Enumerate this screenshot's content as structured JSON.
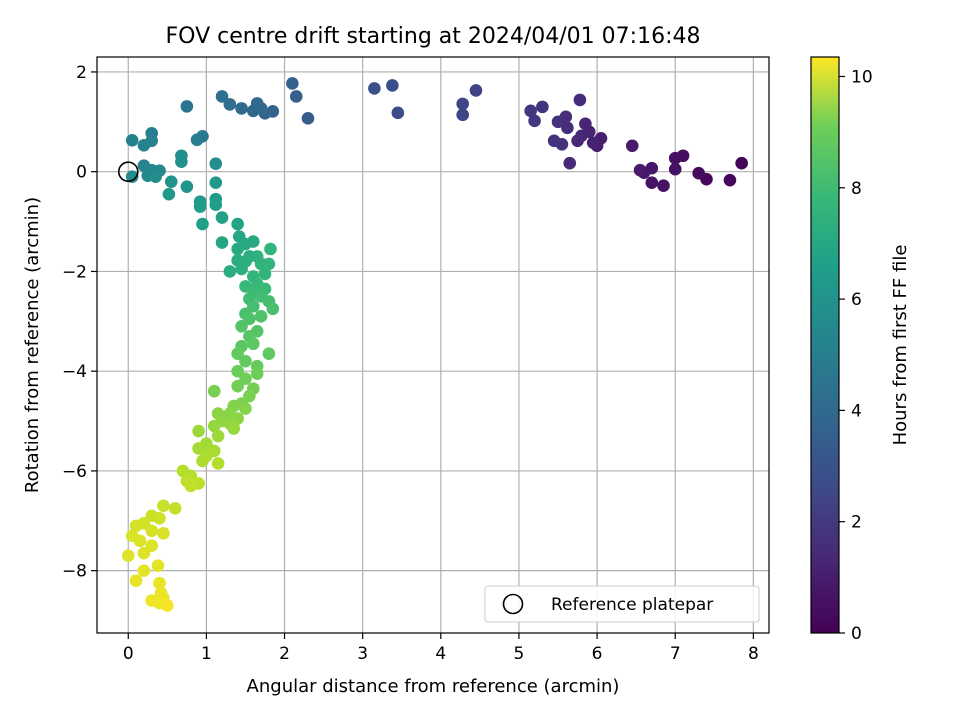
{
  "chart_data": {
    "type": "scatter",
    "title": "FOV centre drift starting at 2024/04/01 07:16:48",
    "xlabel": "Angular distance from reference (arcmin)",
    "ylabel": "Rotation from reference (arcmin)",
    "xlim": [
      -0.4,
      8.2
    ],
    "ylim": [
      -9.25,
      2.3
    ],
    "xticks": [
      0,
      1,
      2,
      3,
      4,
      5,
      6,
      7,
      8
    ],
    "yticks": [
      -8,
      -6,
      -4,
      -2,
      0,
      2
    ],
    "grid": true,
    "legend": {
      "placement": "lower-right",
      "entries": [
        "Reference platepar"
      ]
    },
    "reference_point": {
      "x": 0,
      "y": 0
    },
    "colorbar": {
      "label": "Hours from first FF file",
      "colormap": "viridis",
      "range": [
        0,
        10.35
      ],
      "ticks": [
        0,
        2,
        4,
        6,
        8,
        10
      ]
    },
    "points": [
      {
        "x": 7.85,
        "y": 0.17,
        "c": 0.1
      },
      {
        "x": 7.7,
        "y": -0.17,
        "c": 0.2
      },
      {
        "x": 7.4,
        "y": -0.15,
        "c": 0.25
      },
      {
        "x": 7.3,
        "y": -0.03,
        "c": 0.3
      },
      {
        "x": 7.1,
        "y": 0.32,
        "c": 0.4
      },
      {
        "x": 7.0,
        "y": 0.27,
        "c": 0.45
      },
      {
        "x": 7.0,
        "y": 0.05,
        "c": 0.5
      },
      {
        "x": 6.85,
        "y": -0.28,
        "c": 0.55
      },
      {
        "x": 6.7,
        "y": -0.22,
        "c": 0.6
      },
      {
        "x": 6.7,
        "y": 0.07,
        "c": 0.65
      },
      {
        "x": 6.6,
        "y": -0.02,
        "c": 0.7
      },
      {
        "x": 6.55,
        "y": 0.03,
        "c": 0.75
      },
      {
        "x": 6.45,
        "y": 0.52,
        "c": 0.8
      },
      {
        "x": 6.05,
        "y": 0.67,
        "c": 0.9
      },
      {
        "x": 6.0,
        "y": 0.52,
        "c": 0.95
      },
      {
        "x": 5.95,
        "y": 0.58,
        "c": 1.0
      },
      {
        "x": 5.9,
        "y": 0.8,
        "c": 1.05
      },
      {
        "x": 5.85,
        "y": 0.96,
        "c": 1.1
      },
      {
        "x": 5.8,
        "y": 0.72,
        "c": 1.15
      },
      {
        "x": 5.75,
        "y": 0.62,
        "c": 1.2
      },
      {
        "x": 5.78,
        "y": 1.44,
        "c": 1.25
      },
      {
        "x": 5.65,
        "y": 0.17,
        "c": 1.3
      },
      {
        "x": 5.62,
        "y": 0.88,
        "c": 1.35
      },
      {
        "x": 5.6,
        "y": 1.1,
        "c": 1.4
      },
      {
        "x": 5.55,
        "y": 0.55,
        "c": 1.45
      },
      {
        "x": 5.5,
        "y": 1.0,
        "c": 1.5
      },
      {
        "x": 5.45,
        "y": 0.62,
        "c": 1.55
      },
      {
        "x": 5.3,
        "y": 1.3,
        "c": 1.6
      },
      {
        "x": 5.2,
        "y": 1.02,
        "c": 1.65
      },
      {
        "x": 5.15,
        "y": 1.22,
        "c": 1.7
      },
      {
        "x": 4.45,
        "y": 1.63,
        "c": 2.05
      },
      {
        "x": 4.28,
        "y": 1.36,
        "c": 2.15
      },
      {
        "x": 4.28,
        "y": 1.14,
        "c": 2.2
      },
      {
        "x": 3.45,
        "y": 1.18,
        "c": 2.4
      },
      {
        "x": 3.38,
        "y": 1.73,
        "c": 2.5
      },
      {
        "x": 3.15,
        "y": 1.67,
        "c": 2.6
      },
      {
        "x": 2.3,
        "y": 1.07,
        "c": 3.0
      },
      {
        "x": 2.15,
        "y": 1.51,
        "c": 3.1
      },
      {
        "x": 2.1,
        "y": 1.77,
        "c": 3.2
      },
      {
        "x": 1.85,
        "y": 1.21,
        "c": 3.3
      },
      {
        "x": 1.75,
        "y": 1.17,
        "c": 3.35
      },
      {
        "x": 1.7,
        "y": 1.27,
        "c": 3.4
      },
      {
        "x": 1.65,
        "y": 1.37,
        "c": 3.45
      },
      {
        "x": 1.6,
        "y": 1.22,
        "c": 3.5
      },
      {
        "x": 1.45,
        "y": 1.27,
        "c": 3.6
      },
      {
        "x": 1.3,
        "y": 1.35,
        "c": 3.7
      },
      {
        "x": 1.2,
        "y": 1.51,
        "c": 3.8
      },
      {
        "x": 0.75,
        "y": 1.31,
        "c": 4.0
      },
      {
        "x": 0.95,
        "y": 0.71,
        "c": 4.2
      },
      {
        "x": 0.88,
        "y": 0.64,
        "c": 4.3
      },
      {
        "x": 0.3,
        "y": 0.77,
        "c": 4.4
      },
      {
        "x": 0.3,
        "y": 0.62,
        "c": 4.5
      },
      {
        "x": 0.05,
        "y": 0.63,
        "c": 4.55
      },
      {
        "x": 0.2,
        "y": 0.53,
        "c": 4.6
      },
      {
        "x": 0.2,
        "y": 0.12,
        "c": 4.7
      },
      {
        "x": 0.3,
        "y": 0.03,
        "c": 4.8
      },
      {
        "x": 0.4,
        "y": 0.02,
        "c": 4.85
      },
      {
        "x": 0.25,
        "y": -0.08,
        "c": 4.9
      },
      {
        "x": 0.05,
        "y": -0.1,
        "c": 5.0
      },
      {
        "x": 0.35,
        "y": -0.1,
        "c": 5.05
      },
      {
        "x": 1.12,
        "y": 0.16,
        "c": 5.1
      },
      {
        "x": 0.68,
        "y": 0.32,
        "c": 5.15
      },
      {
        "x": 0.68,
        "y": 0.2,
        "c": 5.2
      },
      {
        "x": 0.55,
        "y": -0.2,
        "c": 5.3
      },
      {
        "x": 0.75,
        "y": -0.3,
        "c": 5.4
      },
      {
        "x": 0.52,
        "y": -0.45,
        "c": 5.5
      },
      {
        "x": 1.12,
        "y": -0.22,
        "c": 5.55
      },
      {
        "x": 0.92,
        "y": -0.6,
        "c": 5.6
      },
      {
        "x": 0.92,
        "y": -0.7,
        "c": 5.65
      },
      {
        "x": 1.12,
        "y": -0.55,
        "c": 5.7
      },
      {
        "x": 1.12,
        "y": -0.66,
        "c": 5.75
      },
      {
        "x": 0.95,
        "y": -1.05,
        "c": 5.8
      },
      {
        "x": 1.2,
        "y": -0.92,
        "c": 5.9
      },
      {
        "x": 1.4,
        "y": -1.05,
        "c": 6.0
      },
      {
        "x": 1.2,
        "y": -1.42,
        "c": 6.05
      },
      {
        "x": 1.42,
        "y": -1.3,
        "c": 6.1
      },
      {
        "x": 1.5,
        "y": -1.45,
        "c": 6.2
      },
      {
        "x": 1.6,
        "y": -1.4,
        "c": 6.25
      },
      {
        "x": 1.4,
        "y": -1.55,
        "c": 6.3
      },
      {
        "x": 1.4,
        "y": -1.78,
        "c": 6.35
      },
      {
        "x": 1.55,
        "y": -1.7,
        "c": 6.4
      },
      {
        "x": 1.3,
        "y": -2.0,
        "c": 6.45
      },
      {
        "x": 1.45,
        "y": -1.95,
        "c": 6.5
      },
      {
        "x": 1.5,
        "y": -1.8,
        "c": 6.55
      },
      {
        "x": 1.65,
        "y": -1.7,
        "c": 6.6
      },
      {
        "x": 1.7,
        "y": -1.85,
        "c": 6.65
      },
      {
        "x": 1.82,
        "y": -1.55,
        "c": 6.7
      },
      {
        "x": 1.8,
        "y": -1.85,
        "c": 6.75
      },
      {
        "x": 1.75,
        "y": -2.05,
        "c": 6.8
      },
      {
        "x": 1.6,
        "y": -2.1,
        "c": 6.85
      },
      {
        "x": 1.65,
        "y": -2.25,
        "c": 6.9
      },
      {
        "x": 1.5,
        "y": -2.3,
        "c": 6.95
      },
      {
        "x": 1.75,
        "y": -2.35,
        "c": 7.0
      },
      {
        "x": 1.6,
        "y": -2.4,
        "c": 7.05
      },
      {
        "x": 1.55,
        "y": -2.55,
        "c": 7.1
      },
      {
        "x": 1.7,
        "y": -2.5,
        "c": 7.15
      },
      {
        "x": 1.8,
        "y": -2.6,
        "c": 7.2
      },
      {
        "x": 1.6,
        "y": -2.7,
        "c": 7.25
      },
      {
        "x": 1.85,
        "y": -2.75,
        "c": 7.3
      },
      {
        "x": 1.5,
        "y": -2.85,
        "c": 7.35
      },
      {
        "x": 1.55,
        "y": -2.95,
        "c": 7.4
      },
      {
        "x": 1.7,
        "y": -2.9,
        "c": 7.45
      },
      {
        "x": 1.45,
        "y": -3.1,
        "c": 7.5
      },
      {
        "x": 1.65,
        "y": -3.2,
        "c": 7.55
      },
      {
        "x": 1.55,
        "y": -3.3,
        "c": 7.6
      },
      {
        "x": 1.45,
        "y": -3.5,
        "c": 7.65
      },
      {
        "x": 1.6,
        "y": -3.45,
        "c": 7.7
      },
      {
        "x": 1.8,
        "y": -3.65,
        "c": 7.75
      },
      {
        "x": 1.4,
        "y": -3.65,
        "c": 7.8
      },
      {
        "x": 1.5,
        "y": -3.8,
        "c": 7.85
      },
      {
        "x": 1.65,
        "y": -3.9,
        "c": 7.9
      },
      {
        "x": 1.4,
        "y": -4.0,
        "c": 7.95
      },
      {
        "x": 1.65,
        "y": -4.05,
        "c": 8.0
      },
      {
        "x": 1.5,
        "y": -4.15,
        "c": 8.05
      },
      {
        "x": 1.4,
        "y": -4.3,
        "c": 8.1
      },
      {
        "x": 1.6,
        "y": -4.35,
        "c": 8.15
      },
      {
        "x": 1.1,
        "y": -4.4,
        "c": 8.2
      },
      {
        "x": 1.55,
        "y": -4.5,
        "c": 8.25
      },
      {
        "x": 1.45,
        "y": -4.65,
        "c": 8.3
      },
      {
        "x": 1.35,
        "y": -4.7,
        "c": 8.35
      },
      {
        "x": 1.5,
        "y": -4.75,
        "c": 8.4
      },
      {
        "x": 1.3,
        "y": -4.85,
        "c": 8.45
      },
      {
        "x": 1.15,
        "y": -4.85,
        "c": 8.5
      },
      {
        "x": 1.4,
        "y": -4.95,
        "c": 8.55
      },
      {
        "x": 1.2,
        "y": -5.0,
        "c": 8.6
      },
      {
        "x": 1.3,
        "y": -5.05,
        "c": 8.65
      },
      {
        "x": 1.1,
        "y": -5.1,
        "c": 8.7
      },
      {
        "x": 1.35,
        "y": -5.15,
        "c": 8.75
      },
      {
        "x": 0.9,
        "y": -5.2,
        "c": 8.8
      },
      {
        "x": 1.15,
        "y": -5.3,
        "c": 8.85
      },
      {
        "x": 1.0,
        "y": -5.45,
        "c": 8.9
      },
      {
        "x": 0.9,
        "y": -5.55,
        "c": 8.95
      },
      {
        "x": 1.1,
        "y": -5.6,
        "c": 9.0
      },
      {
        "x": 1.0,
        "y": -5.7,
        "c": 9.05
      },
      {
        "x": 0.95,
        "y": -5.8,
        "c": 9.1
      },
      {
        "x": 1.15,
        "y": -5.85,
        "c": 9.15
      },
      {
        "x": 0.7,
        "y": -6.0,
        "c": 9.2
      },
      {
        "x": 0.8,
        "y": -6.1,
        "c": 9.25
      },
      {
        "x": 0.75,
        "y": -6.2,
        "c": 9.3
      },
      {
        "x": 0.9,
        "y": -6.25,
        "c": 9.35
      },
      {
        "x": 0.8,
        "y": -6.3,
        "c": 9.4
      },
      {
        "x": 0.6,
        "y": -6.75,
        "c": 9.45
      },
      {
        "x": 0.45,
        "y": -6.7,
        "c": 9.5
      },
      {
        "x": 0.3,
        "y": -6.9,
        "c": 9.55
      },
      {
        "x": 0.4,
        "y": -6.95,
        "c": 9.6
      },
      {
        "x": 0.2,
        "y": -7.05,
        "c": 9.65
      },
      {
        "x": 0.1,
        "y": -7.1,
        "c": 9.7
      },
      {
        "x": 0.3,
        "y": -7.2,
        "c": 9.72
      },
      {
        "x": 0.45,
        "y": -7.25,
        "c": 9.75
      },
      {
        "x": 0.05,
        "y": -7.3,
        "c": 9.78
      },
      {
        "x": 0.15,
        "y": -7.4,
        "c": 9.8
      },
      {
        "x": 0.3,
        "y": -7.5,
        "c": 9.83
      },
      {
        "x": 0.2,
        "y": -7.65,
        "c": 9.86
      },
      {
        "x": 0.0,
        "y": -7.7,
        "c": 9.89
      },
      {
        "x": 0.38,
        "y": -7.9,
        "c": 9.92
      },
      {
        "x": 0.2,
        "y": -8.0,
        "c": 9.95
      },
      {
        "x": 0.1,
        "y": -8.2,
        "c": 9.98
      },
      {
        "x": 0.4,
        "y": -8.25,
        "c": 10.01
      },
      {
        "x": 0.42,
        "y": -8.45,
        "c": 10.04
      },
      {
        "x": 0.45,
        "y": -8.55,
        "c": 10.07
      },
      {
        "x": 0.3,
        "y": -8.6,
        "c": 10.1
      },
      {
        "x": 0.4,
        "y": -8.65,
        "c": 10.15
      },
      {
        "x": 0.5,
        "y": -8.7,
        "c": 10.2
      }
    ]
  }
}
